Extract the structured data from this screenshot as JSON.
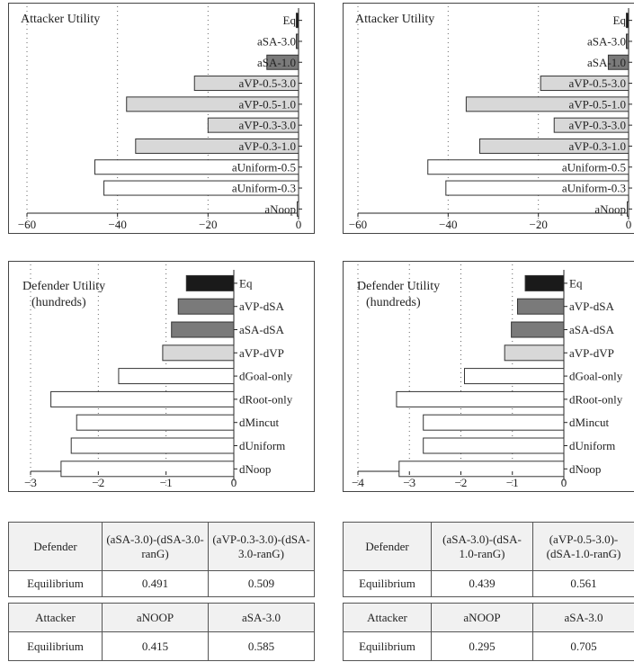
{
  "colors": {
    "eq": "#1a1a1a",
    "sa": "#7a7a7a",
    "vp": "#d8d8d8",
    "other": "#ffffff",
    "stroke": "#333333"
  },
  "chart_data": [
    {
      "type": "bar",
      "orientation": "horizontal",
      "title": "Attacker Utility",
      "subtitle": "",
      "xlim": [
        -60,
        0
      ],
      "xticks": [
        -60,
        -40,
        -20,
        0
      ],
      "grid": "dotted-vertical",
      "categories": [
        "Eq",
        "aSA-3.0",
        "aSA-1.0",
        "aVP-0.5-3.0",
        "aVP-0.5-1.0",
        "aVP-0.3-3.0",
        "aVP-0.3-1.0",
        "aUniform-0.5",
        "aUniform-0.3",
        "aNoop"
      ],
      "values": [
        -0.5,
        -0.5,
        -7,
        -23,
        -38,
        -20,
        -36,
        -45,
        -43,
        -0.3
      ],
      "fills": [
        "eq",
        "sa",
        "sa",
        "vp",
        "vp",
        "vp",
        "vp",
        "other",
        "other",
        "other"
      ]
    },
    {
      "type": "bar",
      "orientation": "horizontal",
      "title": "Attacker Utility",
      "subtitle": "",
      "xlim": [
        -60,
        0
      ],
      "xticks": [
        -60,
        -40,
        -20,
        0
      ],
      "grid": "dotted-vertical",
      "categories": [
        "Eq",
        "aSA-3.0",
        "aSA-1.0",
        "aVP-0.5-3.0",
        "aVP-0.5-1.0",
        "aVP-0.3-3.0",
        "aVP-0.3-1.0",
        "aUniform-0.5",
        "aUniform-0.3",
        "aNoop"
      ],
      "values": [
        -0.5,
        -0.5,
        -4.5,
        -19.5,
        -36,
        -16.5,
        -33,
        -44.5,
        -40.5,
        -0.3
      ],
      "fills": [
        "eq",
        "sa",
        "sa",
        "vp",
        "vp",
        "vp",
        "vp",
        "other",
        "other",
        "other"
      ]
    },
    {
      "type": "bar",
      "orientation": "horizontal",
      "title": "Defender Utility",
      "subtitle": "(hundreds)",
      "xlim": [
        -3,
        0
      ],
      "xticks": [
        -3,
        -2,
        -1,
        0
      ],
      "grid": "dotted-vertical",
      "categories": [
        "Eq",
        "aVP-dSA",
        "aSA-dSA",
        "aVP-dVP",
        "dGoal-only",
        "dRoot-only",
        "dMincut",
        "dUniform",
        "dNoop"
      ],
      "values": [
        -0.7,
        -0.82,
        -0.92,
        -1.05,
        -1.7,
        -2.7,
        -2.32,
        -2.4,
        -2.55
      ],
      "fills": [
        "eq",
        "sa",
        "sa",
        "vp",
        "other",
        "other",
        "other",
        "other",
        "other"
      ]
    },
    {
      "type": "bar",
      "orientation": "horizontal",
      "title": "Defender Utility",
      "subtitle": "(hundreds)",
      "xlim": [
        -4,
        0
      ],
      "xticks": [
        -4,
        -3,
        -2,
        -1,
        0
      ],
      "grid": "dotted-vertical",
      "categories": [
        "Eq",
        "aVP-dSA",
        "aSA-dSA",
        "aVP-dVP",
        "dGoal-only",
        "dRoot-only",
        "dMincut",
        "dUniform",
        "dNoop"
      ],
      "values": [
        -0.75,
        -0.9,
        -1.02,
        -1.15,
        -1.93,
        -3.25,
        -2.73,
        -2.73,
        -3.2
      ],
      "fills": [
        "eq",
        "sa",
        "sa",
        "vp",
        "other",
        "other",
        "other",
        "other",
        "other"
      ]
    }
  ],
  "tables": [
    {
      "def_h": [
        "Defender",
        "(aSA-3.0)-(dSA-3.0-ranG)",
        "(aVP-0.3-3.0)-(dSA-3.0-ranG)"
      ],
      "def_v": [
        "Equilibrium",
        "0.491",
        "0.509"
      ],
      "att_h": [
        "Attacker",
        "aNOOP",
        "aSA-3.0"
      ],
      "att_v": [
        "Equilibrium",
        "0.415",
        "0.585"
      ]
    },
    {
      "def_h": [
        "Defender",
        "(aSA-3.0)-(dSA-1.0-ranG)",
        "(aVP-0.5-3.0)-(dSA-1.0-ranG)"
      ],
      "def_v": [
        "Equilibrium",
        "0.439",
        "0.561"
      ],
      "att_h": [
        "Attacker",
        "aNOOP",
        "aSA-3.0"
      ],
      "att_v": [
        "Equilibrium",
        "0.295",
        "0.705"
      ]
    }
  ]
}
